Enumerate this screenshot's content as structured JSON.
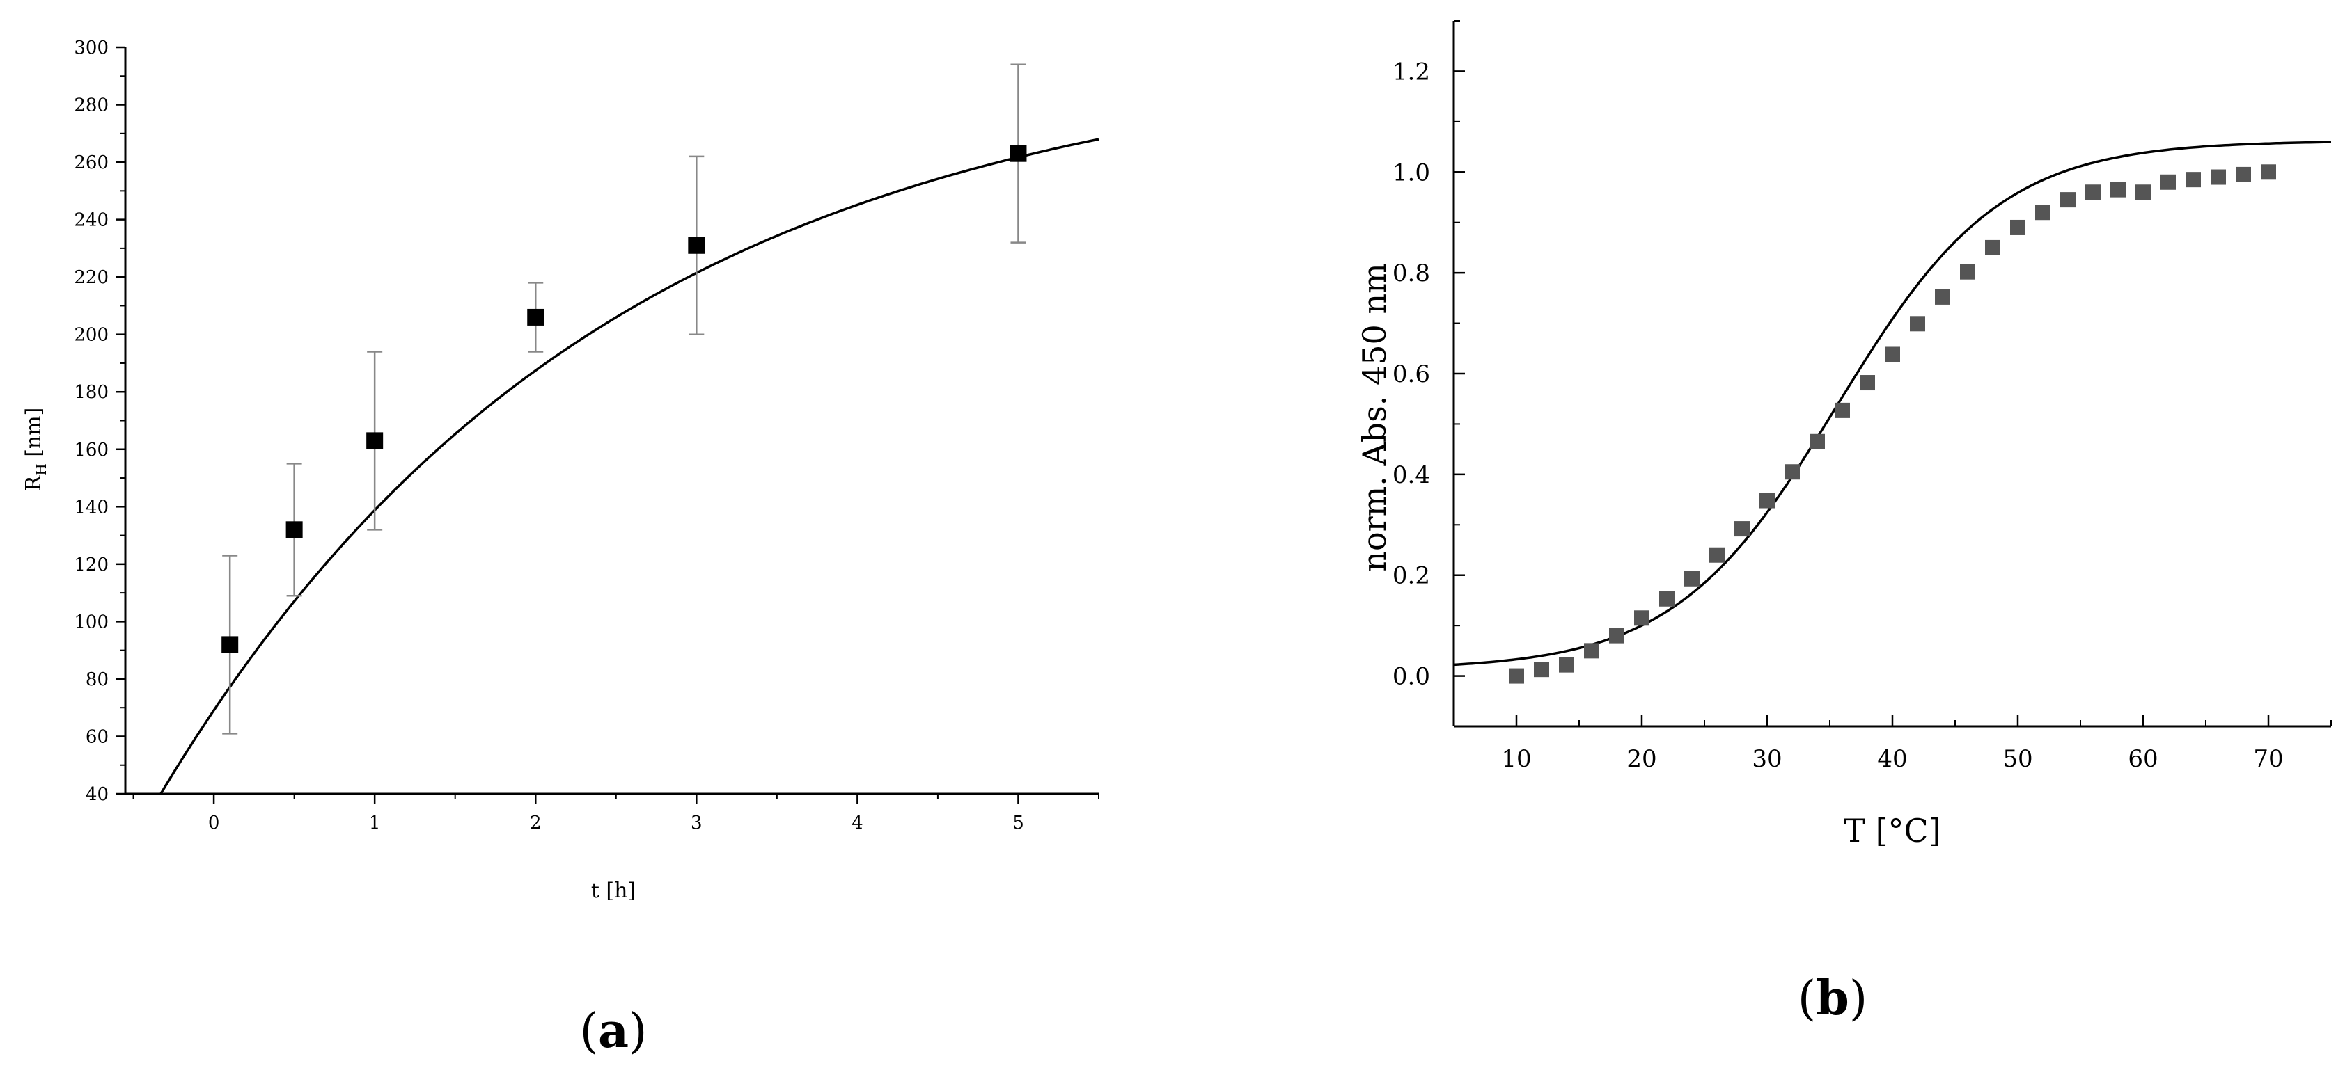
{
  "chart_data": [
    {
      "panel": "a",
      "type": "scatter",
      "panel_label_open": "(",
      "panel_label_letter": "a",
      "panel_label_close": ")",
      "xlabel": "t [h]",
      "ylabel_main": "R",
      "ylabel_sub": "H",
      "ylabel_unit": " [nm]",
      "xlim": [
        -0.55,
        5.5
      ],
      "ylim": [
        40,
        300
      ],
      "xticks": [
        0,
        1,
        2,
        3,
        4,
        5
      ],
      "yticks": [
        40,
        60,
        80,
        100,
        120,
        140,
        160,
        180,
        200,
        220,
        240,
        260,
        280,
        300
      ],
      "grid": false,
      "legend": "none",
      "marker_color": "#000000",
      "points": [
        {
          "x": 0.1,
          "y": 92,
          "err_low": 61,
          "err_high": 123
        },
        {
          "x": 0.5,
          "y": 132,
          "err_low": 109,
          "err_high": 155
        },
        {
          "x": 1,
          "y": 163,
          "err_low": 132,
          "err_high": 194
        },
        {
          "x": 2,
          "y": 206,
          "err_low": 194,
          "err_high": 218
        },
        {
          "x": 3,
          "y": 231,
          "err_low": 200,
          "err_high": 262
        },
        {
          "x": 5,
          "y": 263,
          "err_low": 232,
          "err_high": 294
        }
      ],
      "fit": {
        "type": "exponential_rise",
        "y_start": 40,
        "x_start": -0.33,
        "asymptote": 300,
        "y_at_5_5": 268
      }
    },
    {
      "panel": "b",
      "type": "scatter",
      "panel_label_open": "(",
      "panel_label_letter": "b",
      "panel_label_close": ")",
      "xlabel": "T [°C]",
      "ylabel": "norm. Abs. 450 nm",
      "xlim": [
        5,
        75
      ],
      "ylim": [
        -0.1,
        1.3
      ],
      "xticks": [
        10,
        20,
        30,
        40,
        50,
        60,
        70
      ],
      "yticks": [
        0.0,
        0.2,
        0.4,
        0.6,
        0.8,
        1.0,
        1.2
      ],
      "ytick_labels": [
        "0.0",
        "0.2",
        "0.4",
        "0.6",
        "0.8",
        "1.0",
        "1.2"
      ],
      "grid": false,
      "legend": "none",
      "marker_color": "#555555",
      "x": [
        10,
        12,
        14,
        16,
        18,
        20,
        22,
        24,
        26,
        28,
        30,
        32,
        34,
        36,
        38,
        40,
        42,
        44,
        46,
        48,
        50,
        52,
        54,
        56,
        58,
        60,
        62,
        64,
        66,
        68,
        70
      ],
      "y": [
        0.0,
        0.013,
        0.022,
        0.05,
        0.08,
        0.115,
        0.153,
        0.193,
        0.24,
        0.292,
        0.348,
        0.405,
        0.465,
        0.527,
        0.582,
        0.638,
        0.699,
        0.752,
        0.802,
        0.85,
        0.89,
        0.92,
        0.945,
        0.96,
        0.965,
        0.96,
        0.98,
        0.985,
        0.99,
        0.995,
        1.0
      ],
      "fit": {
        "type": "boltzmann",
        "bottom": 0.013,
        "top": 1.062,
        "x0": 35.6,
        "dx": 6.5
      }
    }
  ]
}
